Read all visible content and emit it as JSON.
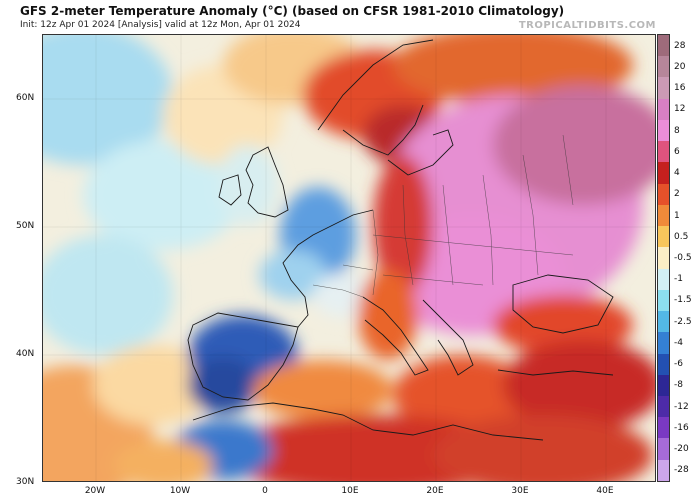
{
  "header": {
    "title": "GFS 2-meter Temperature Anomaly (°C) (based on CFSR 1981-2010 Climatology)",
    "subtitle": "Init: 12z Apr 01 2024   [Analysis]   valid at 12z Mon, Apr 01 2024",
    "brand": "TROPICALTIDBITS.COM"
  },
  "map": {
    "region": "Europe / North Africa",
    "lat_labels": [
      "60N",
      "50N",
      "40N",
      "30N"
    ],
    "lon_labels": [
      "20W",
      "10W",
      "0",
      "10E",
      "20E",
      "30E",
      "40E"
    ],
    "colors": {
      "ocean_cool": "#f2efe2",
      "land_warm": "#e8531c",
      "land_hot": "#c9201b",
      "east_europe": "#e58fcf",
      "iberia_cold": "#2a5cb3",
      "borders": "#1a1a1a"
    }
  },
  "colorbar": {
    "labels": [
      "28",
      "20",
      "16",
      "12",
      "8",
      "6",
      "4",
      "2",
      "1",
      "0.5",
      "-0.5",
      "-1",
      "-1.5",
      "-2.5",
      "-4",
      "-6",
      "-8",
      "-12",
      "-16",
      "-20",
      "-28"
    ],
    "colors": [
      "#9e6b7b",
      "#b6869a",
      "#cb9ab5",
      "#d77fc4",
      "#ec8dd8",
      "#e0537e",
      "#c5201e",
      "#e6512a",
      "#f08a3a",
      "#f8c65c",
      "#fbeec6",
      "#d3f0f4",
      "#8cdfef",
      "#53b8e6",
      "#3480d4",
      "#2350b2",
      "#2d2795",
      "#4d2ba8",
      "#7a39c3",
      "#a66bd8",
      "#cda6ea"
    ]
  }
}
